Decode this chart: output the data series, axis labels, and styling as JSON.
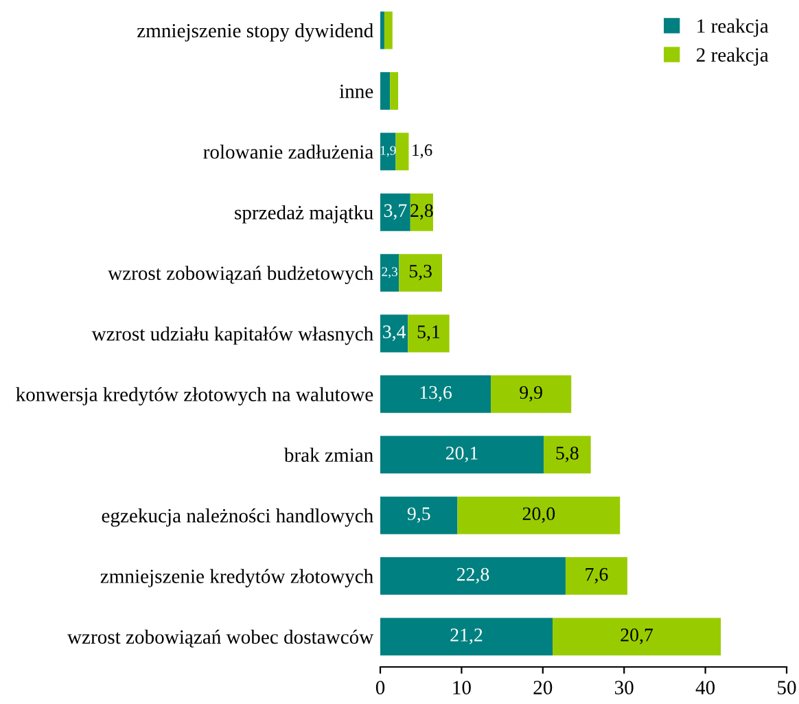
{
  "chart_data": {
    "type": "bar",
    "orientation": "horizontal",
    "stacked": true,
    "categories": [
      "zmniejszenie stopy dywidend",
      "inne",
      "rolowanie zadłużenia",
      "sprzedaż majątku",
      "wzrost zobowiązań budżetowych",
      "wzrost udziału kapitałów własnych",
      "konwersja kredytów złotowych na walutowe",
      "brak zmian",
      "egzekucja należności handlowych",
      "zmniejszenie kredytów złotowych",
      "wzrost zobowiązań wobec dostawców"
    ],
    "series": [
      {
        "name": "1 reakcja",
        "color": "#008080",
        "values": [
          0.5,
          1.2,
          1.9,
          3.7,
          2.3,
          3.4,
          13.6,
          20.1,
          9.5,
          22.8,
          21.2
        ],
        "value_labels": [
          null,
          null,
          "1,9",
          "3,7",
          "2,3",
          "3,4",
          "13,6",
          "20,1",
          "9,5",
          "22,8",
          "21,2"
        ]
      },
      {
        "name": "2 reakcja",
        "color": "#99cc00",
        "values": [
          1.0,
          1.0,
          1.6,
          2.8,
          5.3,
          5.1,
          9.9,
          5.8,
          20.0,
          7.6,
          20.7
        ],
        "value_labels": [
          null,
          null,
          "1,6",
          "2,8",
          "5,3",
          "5,1",
          "9,9",
          "5,8",
          "20,0",
          "7,6",
          "20,7"
        ]
      }
    ],
    "xlim": [
      0,
      50
    ],
    "xticks": [
      0,
      10,
      20,
      30,
      40,
      50
    ],
    "grid": false,
    "legend": "top right"
  }
}
